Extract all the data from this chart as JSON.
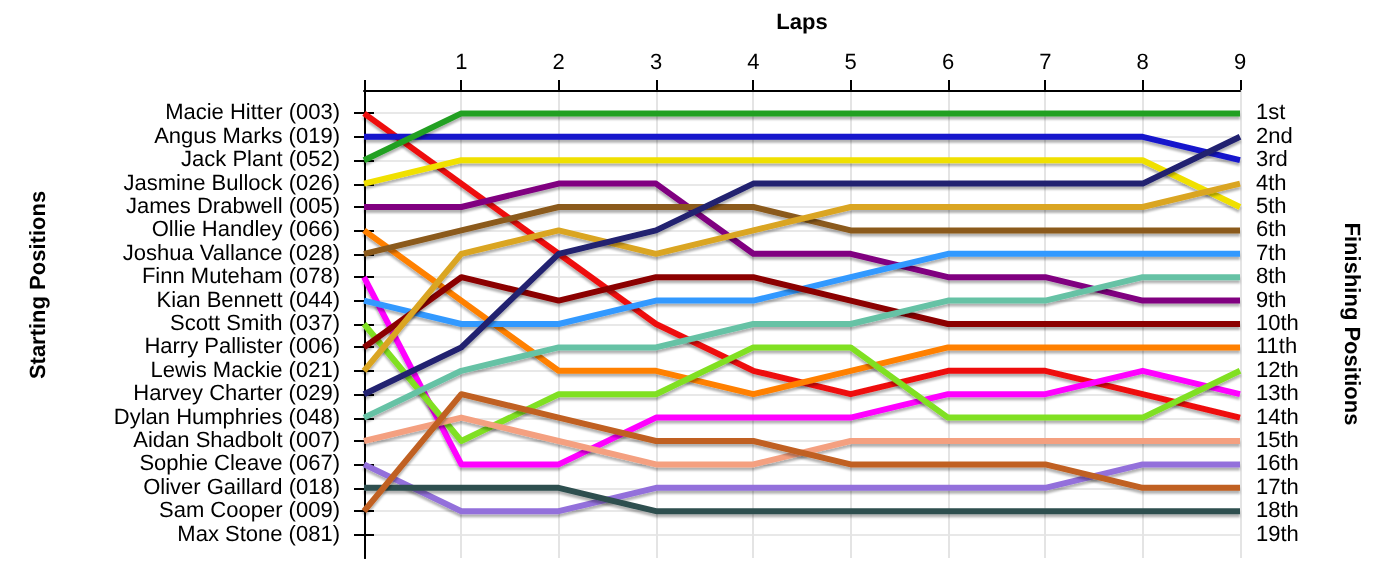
{
  "chart_data": {
    "type": "line",
    "xlabel": "Laps",
    "ylabel": "Finishing Positions",
    "annotations": [
      "Starting Positions",
      "Max Stone (081)"
    ],
    "x": [
      0,
      1,
      2,
      3,
      4,
      5,
      6,
      7,
      8,
      9
    ],
    "xlim": [
      0,
      9
    ],
    "xticks": [
      {
        "value": 0,
        "label": null
      },
      1,
      2,
      3,
      4,
      5,
      6,
      7,
      8,
      9
    ],
    "ylim": [
      20,
      0
    ],
    "yticks": [
      {
        "value": 1,
        "label": "1st"
      },
      {
        "value": 2,
        "label": "2nd"
      },
      {
        "value": 3,
        "label": "3rd"
      },
      {
        "value": 4,
        "label": "4th"
      },
      {
        "value": 5,
        "label": "5th"
      },
      {
        "value": 6,
        "label": "6th"
      },
      {
        "value": 7,
        "label": "7th"
      },
      {
        "value": 8,
        "label": "8th"
      },
      {
        "value": 9,
        "label": "9th"
      },
      {
        "value": 10,
        "label": "10th"
      },
      {
        "value": 11,
        "label": "11th"
      },
      {
        "value": 12,
        "label": "12th"
      },
      {
        "value": 13,
        "label": "13th"
      },
      {
        "value": 14,
        "label": "14th"
      },
      {
        "value": 15,
        "label": "15th"
      },
      {
        "value": 16,
        "label": "16th"
      },
      {
        "value": 17,
        "label": "17th"
      },
      {
        "value": 18,
        "label": "18th"
      },
      {
        "value": 19,
        "label": "19th"
      }
    ],
    "grid": true,
    "marker": "none",
    "line_style": "solid",
    "series": [
      {
        "name": "Macie Hitter (003)",
        "color": "#ee1111",
        "values": [
          1,
          4,
          7,
          10,
          12,
          13,
          12,
          12,
          13,
          14
        ]
      },
      {
        "name": "Angus Marks (019)",
        "color": "#1515cc",
        "values": [
          2,
          2,
          2,
          2,
          2,
          2,
          2,
          2,
          2,
          3
        ]
      },
      {
        "name": "Jack Plant (052)",
        "color": "#22a022",
        "values": [
          3,
          1,
          1,
          1,
          1,
          1,
          1,
          1,
          1,
          1
        ]
      },
      {
        "name": "Jasmine Bullock (026)",
        "color": "#f0e000",
        "values": [
          4,
          3,
          3,
          3,
          3,
          3,
          3,
          3,
          3,
          5
        ]
      },
      {
        "name": "James Drabwell (005)",
        "color": "#800080",
        "values": [
          5,
          5,
          4,
          4,
          7,
          7,
          8,
          8,
          9,
          9
        ]
      },
      {
        "name": "Ollie Handley (066)",
        "color": "#ff8000",
        "values": [
          6,
          9,
          12,
          12,
          13,
          12,
          11,
          11,
          11,
          11
        ]
      },
      {
        "name": "Joshua Vallance (028)",
        "color": "#8b5a1b",
        "values": [
          7,
          6,
          5,
          5,
          5,
          6,
          6,
          6,
          6,
          6
        ]
      },
      {
        "name": "Finn Muteham (078)",
        "color": "#ff00ff",
        "values": [
          8,
          16,
          16,
          14,
          14,
          14,
          13,
          13,
          12,
          13
        ]
      },
      {
        "name": "Kian Bennett (044)",
        "color": "#3399ff",
        "values": [
          9,
          10,
          10,
          9,
          9,
          8,
          7,
          7,
          7,
          7
        ]
      },
      {
        "name": "Scott Smith (037)",
        "color": "#80e020",
        "values": [
          10,
          15,
          13,
          13,
          11,
          11,
          14,
          14,
          14,
          12
        ]
      },
      {
        "name": "Harry Pallister (006)",
        "color": "#8b0000",
        "values": [
          11,
          8,
          9,
          8,
          8,
          9,
          10,
          10,
          10,
          10
        ]
      },
      {
        "name": "Lewis Mackie (021)",
        "color": "#daa520",
        "values": [
          12,
          7,
          6,
          7,
          6,
          5,
          5,
          5,
          5,
          4
        ]
      },
      {
        "name": "Harvey Charter (029)",
        "color": "#202070",
        "values": [
          13,
          11,
          7,
          6,
          4,
          4,
          4,
          4,
          4,
          2
        ]
      },
      {
        "name": "Dylan Humphries (048)",
        "color": "#66c2a5",
        "values": [
          14,
          12,
          11,
          11,
          10,
          10,
          9,
          9,
          8,
          8
        ]
      },
      {
        "name": "Aidan Shadbolt (007)",
        "color": "#f4a080",
        "values": [
          15,
          14,
          15,
          16,
          16,
          15,
          15,
          15,
          15,
          15
        ]
      },
      {
        "name": "Sophie Cleave (067)",
        "color": "#9370db",
        "values": [
          16,
          18,
          18,
          17,
          17,
          17,
          17,
          17,
          16,
          16
        ]
      },
      {
        "name": "Oliver Gaillard (018)",
        "color": "#2f4f4f",
        "values": [
          17,
          17,
          17,
          18,
          18,
          18,
          18,
          18,
          18,
          18
        ]
      },
      {
        "name": "Sam Cooper (009)",
        "color": "#c06020",
        "values": [
          18,
          13,
          14,
          15,
          15,
          16,
          16,
          16,
          17,
          17
        ]
      }
    ]
  }
}
